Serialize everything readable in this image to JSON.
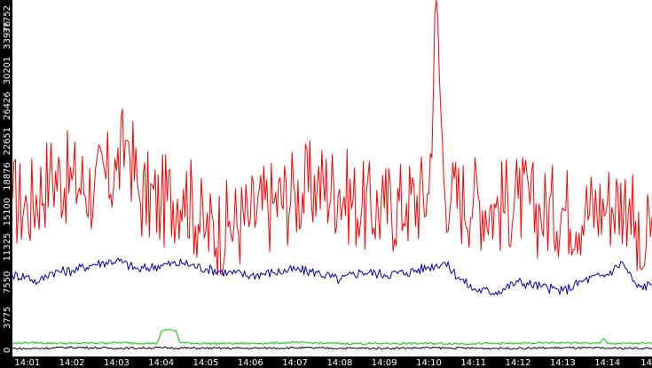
{
  "chart_data": {
    "type": "line",
    "title": "",
    "xlabel": "",
    "ylabel": "",
    "ylim": [
      0,
      37752
    ],
    "xlim": [
      "14:00:40",
      "14:15:00"
    ],
    "grid": false,
    "legend": "none",
    "colors": {
      "background": "#ffffff",
      "axis_band": "#000000",
      "axis_text": "#ffffff"
    },
    "y_ticks": [
      "0",
      "3775",
      "7550",
      "11325",
      "15100",
      "18876",
      "22651",
      "26426",
      "30201",
      "33976",
      "37752"
    ],
    "x_ticks": [
      "14:01",
      "14:02",
      "14:03",
      "14:04",
      "14:05",
      "14:06",
      "14:07",
      "14:08",
      "14:09",
      "14:10",
      "14:11",
      "14:12",
      "14:13",
      "14:14",
      "14"
    ],
    "series": [
      {
        "color": "#ff0000",
        "x": [
          "14:00:40",
          "14:01:00",
          "14:01:30",
          "14:02:00",
          "14:02:30",
          "14:03:00",
          "14:03:15",
          "14:03:30",
          "14:04:00",
          "14:04:30",
          "14:05:00",
          "14:05:30",
          "14:06:00",
          "14:06:30",
          "14:07:00",
          "14:07:30",
          "14:08:00",
          "14:08:30",
          "14:09:00",
          "14:09:30",
          "14:10:00",
          "14:10:10",
          "14:10:20",
          "14:10:30",
          "14:11:00",
          "14:11:30",
          "14:12:00",
          "14:12:30",
          "14:13:00",
          "14:13:30",
          "14:14:00",
          "14:14:30",
          "14:14:45",
          "14:15:00"
        ],
        "values": [
          16500,
          15500,
          19000,
          18500,
          17500,
          19500,
          23000,
          17000,
          16000,
          17500,
          13000,
          13500,
          14500,
          16000,
          17000,
          18000,
          17500,
          15500,
          15500,
          16000,
          17000,
          37752,
          18500,
          16500,
          16500,
          15500,
          16500,
          15000,
          15500,
          15000,
          16000,
          16500,
          8500,
          14500
        ]
      },
      {
        "color": "#0000aa",
        "x": [
          "14:00:40",
          "14:01:00",
          "14:01:15",
          "14:01:30",
          "14:02:00",
          "14:02:30",
          "14:03:00",
          "14:03:30",
          "14:04:00",
          "14:04:30",
          "14:05:00",
          "14:05:30",
          "14:06:00",
          "14:06:30",
          "14:07:00",
          "14:07:30",
          "14:08:00",
          "14:08:30",
          "14:09:00",
          "14:09:30",
          "14:10:00",
          "14:10:20",
          "14:10:40",
          "14:11:00",
          "14:11:30",
          "14:12:00",
          "14:12:30",
          "14:13:00",
          "14:13:30",
          "14:14:00",
          "14:14:20",
          "14:14:40",
          "14:15:00"
        ],
        "values": [
          8300,
          8200,
          7500,
          8600,
          8800,
          9500,
          9900,
          8900,
          9400,
          9600,
          9000,
          8600,
          8300,
          8600,
          8900,
          8600,
          7800,
          8700,
          8400,
          8600,
          9200,
          9700,
          8100,
          6800,
          6500,
          7600,
          7100,
          6600,
          7800,
          8400,
          9700,
          7000,
          7300
        ]
      },
      {
        "color": "#00cc00",
        "x": [
          "14:00:40",
          "14:01:00",
          "14:02:00",
          "14:03:00",
          "14:03:55",
          "14:04:00",
          "14:04:10",
          "14:04:20",
          "14:04:25",
          "14:05:00",
          "14:06:00",
          "14:07:00",
          "14:08:00",
          "14:09:00",
          "14:10:00",
          "14:11:00",
          "14:12:00",
          "14:13:00",
          "14:13:50",
          "14:13:55",
          "14:14:00",
          "14:15:00"
        ],
        "values": [
          1000,
          1100,
          1000,
          1100,
          1000,
          2300,
          2500,
          2400,
          1100,
          1000,
          1000,
          1100,
          1000,
          1000,
          1000,
          1000,
          1000,
          1100,
          1000,
          1600,
          1000,
          1000
        ]
      },
      {
        "color": "#000000",
        "x": [
          "14:00:40",
          "14:01:00",
          "14:02:00",
          "14:03:00",
          "14:04:00",
          "14:05:00",
          "14:06:00",
          "14:07:00",
          "14:08:00",
          "14:09:00",
          "14:10:00",
          "14:11:00",
          "14:12:00",
          "14:13:00",
          "14:14:00",
          "14:15:00"
        ],
        "values": [
          500,
          450,
          600,
          500,
          550,
          500,
          500,
          550,
          500,
          500,
          550,
          500,
          500,
          550,
          500,
          500
        ]
      }
    ]
  }
}
